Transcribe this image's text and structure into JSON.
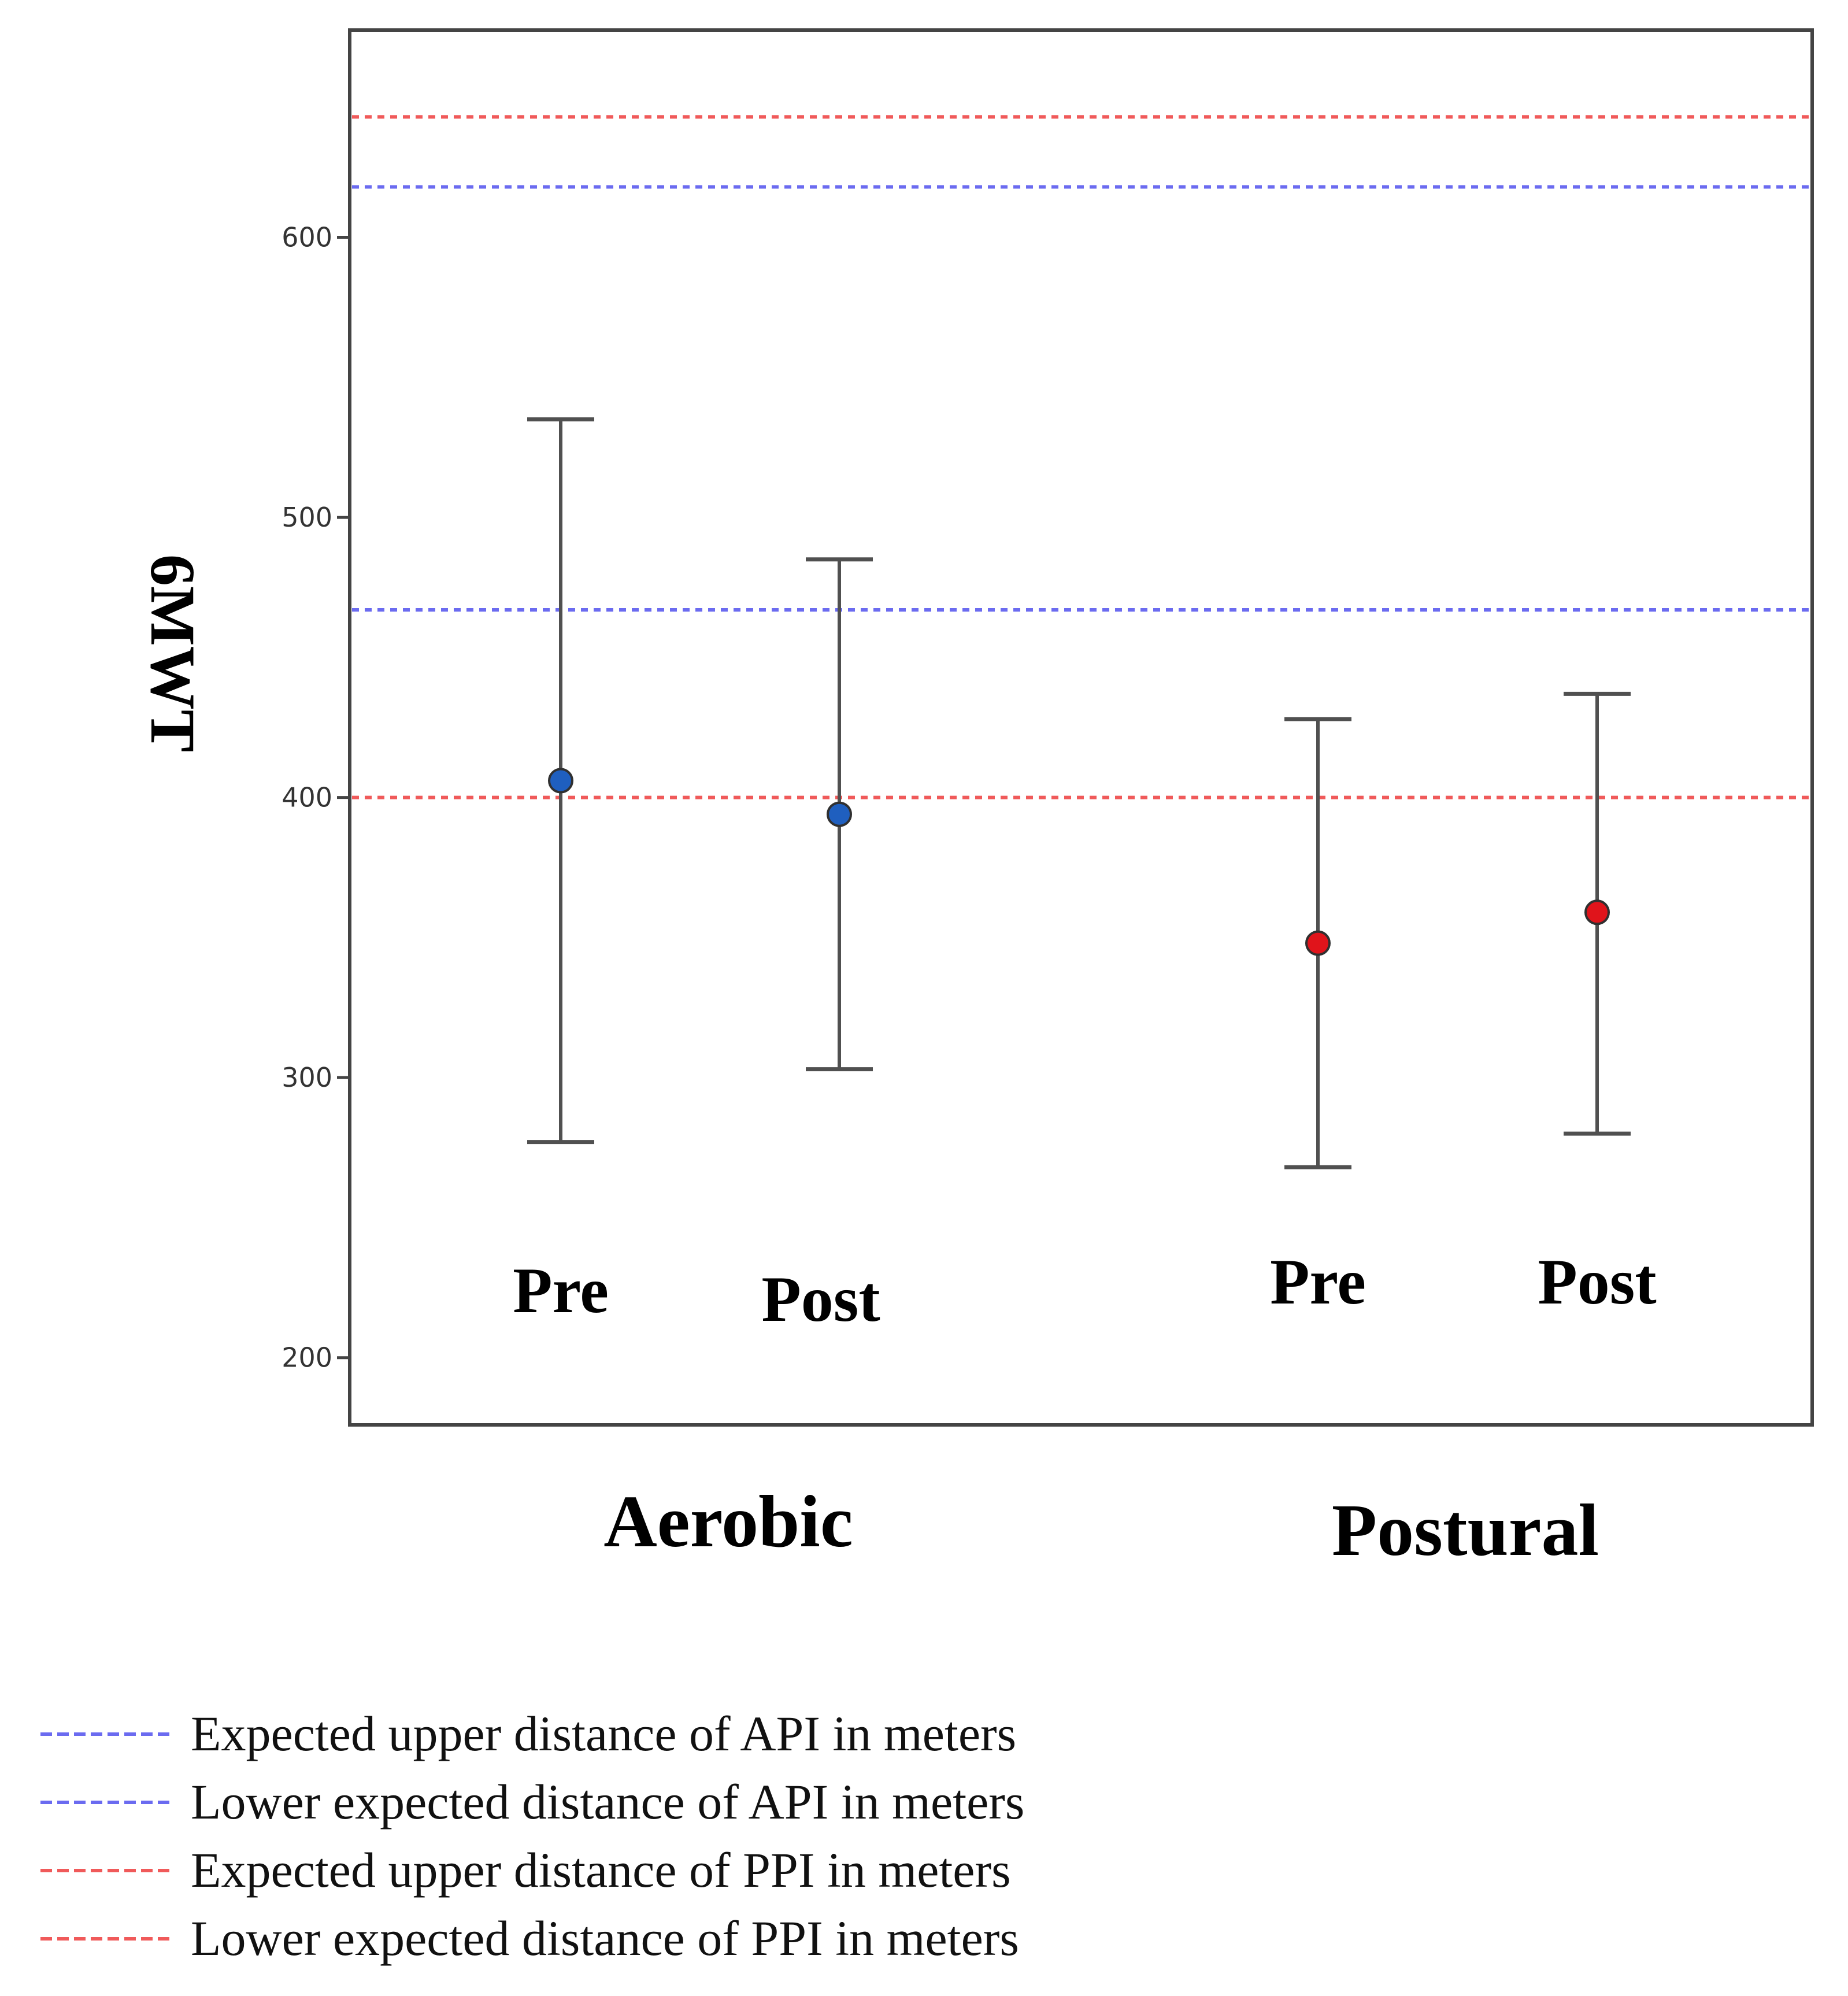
{
  "chart_data": {
    "type": "scatter",
    "title": "",
    "xlabel": "",
    "ylabel": "6MWT",
    "ylim": [
      176,
      674
    ],
    "yticks": [
      200,
      300,
      400,
      500,
      600
    ],
    "groups": [
      {
        "name": "Aerobic",
        "color": "#1f5fbf",
        "points": [
          {
            "label": "Pre",
            "mean": 406,
            "lower": 277,
            "upper": 535
          },
          {
            "label": "Post",
            "mean": 394,
            "lower": 303,
            "upper": 485
          }
        ]
      },
      {
        "name": "Postural",
        "color": "#e0141b",
        "points": [
          {
            "label": "Pre",
            "mean": 348,
            "lower": 268,
            "upper": 428
          },
          {
            "label": "Post",
            "mean": 359,
            "lower": 280,
            "upper": 437
          }
        ]
      }
    ],
    "reference_lines": [
      {
        "label": "Expected upper distance of API in meters",
        "value": 618,
        "color": "#6b6bf0"
      },
      {
        "label": "Lower expected distance of API in meters",
        "value": 467,
        "color": "#6b6bf0"
      },
      {
        "label": "Expected upper distance of PPI in meters",
        "value": 643,
        "color": "#f05a5a"
      },
      {
        "label": "Lower expected distance of PPI in meters",
        "value": 400,
        "color": "#f05a5a"
      }
    ]
  }
}
